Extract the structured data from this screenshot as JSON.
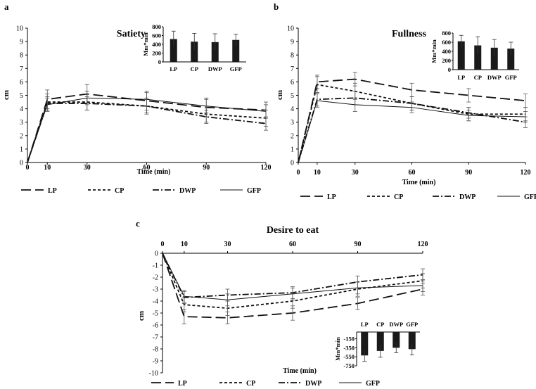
{
  "chart_data": [
    {
      "panel": "a",
      "type": "line",
      "title": "Satiety",
      "xlabel": "Time (min)",
      "ylabel": "cm",
      "ylim": [
        0,
        10
      ],
      "y_ticks": [
        "0",
        "1",
        "2",
        "3",
        "4",
        "5",
        "6",
        "7",
        "8",
        "9",
        "10"
      ],
      "categories": [
        "0",
        "10",
        "30",
        "60",
        "90",
        "120"
      ],
      "series": [
        {
          "name": "LP",
          "style": "longdash",
          "values": [
            0,
            4.7,
            5.1,
            4.6,
            4.1,
            3.9
          ],
          "err": [
            0,
            0.7,
            0.7,
            0.7,
            0.7,
            0.6
          ]
        },
        {
          "name": "CP",
          "style": "shortdash",
          "values": [
            0,
            4.5,
            4.5,
            4.2,
            3.6,
            3.3
          ],
          "err": [
            0,
            0.6,
            0.6,
            0.6,
            0.6,
            0.6
          ]
        },
        {
          "name": "DWP",
          "style": "dashdot",
          "values": [
            0,
            4.4,
            4.4,
            4.2,
            3.4,
            2.9
          ],
          "err": [
            0,
            0.5,
            0.5,
            0.5,
            0.5,
            0.5
          ]
        },
        {
          "name": "GFP",
          "style": "solid",
          "values": [
            0,
            4.3,
            4.8,
            4.7,
            4.2,
            3.8
          ],
          "err": [
            0,
            0.5,
            0.5,
            0.5,
            0.5,
            0.5
          ]
        }
      ],
      "inset": {
        "type": "bar",
        "ylabel": "Mm*min",
        "ylim": [
          0,
          800
        ],
        "y_ticks": [
          "0",
          "200",
          "400",
          "600",
          "800"
        ],
        "categories": [
          "LP",
          "CP",
          "DWP",
          "GFP"
        ],
        "values": [
          520,
          460,
          450,
          500
        ],
        "err": [
          180,
          190,
          190,
          130
        ]
      }
    },
    {
      "panel": "b",
      "type": "line",
      "title": "Fullness",
      "xlabel": "Time (min)",
      "ylabel": "cm",
      "ylim": [
        0,
        10
      ],
      "y_ticks": [
        "0",
        "1",
        "2",
        "3",
        "4",
        "5",
        "6",
        "7",
        "8",
        "9",
        "10"
      ],
      "categories": [
        "0",
        "10",
        "30",
        "60",
        "90",
        "120"
      ],
      "series": [
        {
          "name": "LP",
          "style": "longdash",
          "values": [
            0,
            6.0,
            6.2,
            5.4,
            5.0,
            4.6
          ],
          "err": [
            0,
            0.5,
            0.5,
            0.5,
            0.5,
            0.5
          ]
        },
        {
          "name": "CP",
          "style": "shortdash",
          "values": [
            0,
            5.8,
            5.3,
            4.4,
            3.6,
            3.6
          ],
          "err": [
            0,
            0.6,
            0.6,
            0.5,
            0.5,
            0.5
          ]
        },
        {
          "name": "DWP",
          "style": "dashdot",
          "values": [
            0,
            4.7,
            4.8,
            4.4,
            3.7,
            3.0
          ],
          "err": [
            0,
            0.5,
            0.5,
            0.5,
            0.4,
            0.4
          ]
        },
        {
          "name": "GFP",
          "style": "solid",
          "values": [
            0,
            4.6,
            4.3,
            4.1,
            3.5,
            3.4
          ],
          "err": [
            0,
            0.5,
            0.5,
            0.4,
            0.4,
            0.4
          ]
        }
      ],
      "inset": {
        "type": "bar",
        "ylabel": "Mm*min",
        "ylim": [
          0,
          800
        ],
        "y_ticks": [
          "0",
          "200",
          "400",
          "600",
          "800"
        ],
        "categories": [
          "LP",
          "CP",
          "DWP",
          "GFP"
        ],
        "values": [
          620,
          530,
          480,
          460
        ],
        "err": [
          130,
          190,
          180,
          140
        ]
      }
    },
    {
      "panel": "c",
      "type": "line",
      "title": "Desire to eat",
      "xlabel": "Time (min)",
      "ylabel": "cm",
      "ylim": [
        -10,
        0
      ],
      "y_ticks": [
        "0",
        "-1",
        "-2",
        "-3",
        "-4",
        "-5",
        "-6",
        "-7",
        "-8",
        "-9",
        "-10"
      ],
      "categories": [
        "0",
        "10",
        "30",
        "60",
        "90",
        "120"
      ],
      "series": [
        {
          "name": "LP",
          "style": "longdash",
          "values": [
            0,
            -5.3,
            -5.4,
            -5.0,
            -4.2,
            -3.0
          ],
          "err": [
            0,
            0.6,
            0.5,
            0.6,
            0.5,
            0.5
          ]
        },
        {
          "name": "CP",
          "style": "shortdash",
          "values": [
            0,
            -4.3,
            -4.6,
            -4.0,
            -3.0,
            -2.3
          ],
          "err": [
            0,
            0.6,
            0.6,
            0.6,
            0.6,
            0.6
          ]
        },
        {
          "name": "DWP",
          "style": "dashdot",
          "values": [
            0,
            -3.7,
            -3.5,
            -3.3,
            -2.4,
            -1.8
          ],
          "err": [
            0,
            0.5,
            0.5,
            0.5,
            0.5,
            0.5
          ]
        },
        {
          "name": "GFP",
          "style": "solid",
          "values": [
            0,
            -3.6,
            -3.9,
            -3.4,
            -2.9,
            -2.7
          ],
          "err": [
            0,
            0.5,
            0.5,
            0.5,
            0.5,
            0.5
          ]
        }
      ],
      "inset": {
        "type": "bar",
        "ylabel": "Mm*min",
        "ylim": [
          -750,
          0
        ],
        "y_ticks": [
          "-150",
          "-350",
          "-550",
          "-750"
        ],
        "categories": [
          "LP",
          "CP",
          "DWP",
          "GFP"
        ],
        "values": [
          -520,
          -420,
          -350,
          -380
        ],
        "err": [
          130,
          140,
          110,
          130
        ]
      }
    }
  ]
}
